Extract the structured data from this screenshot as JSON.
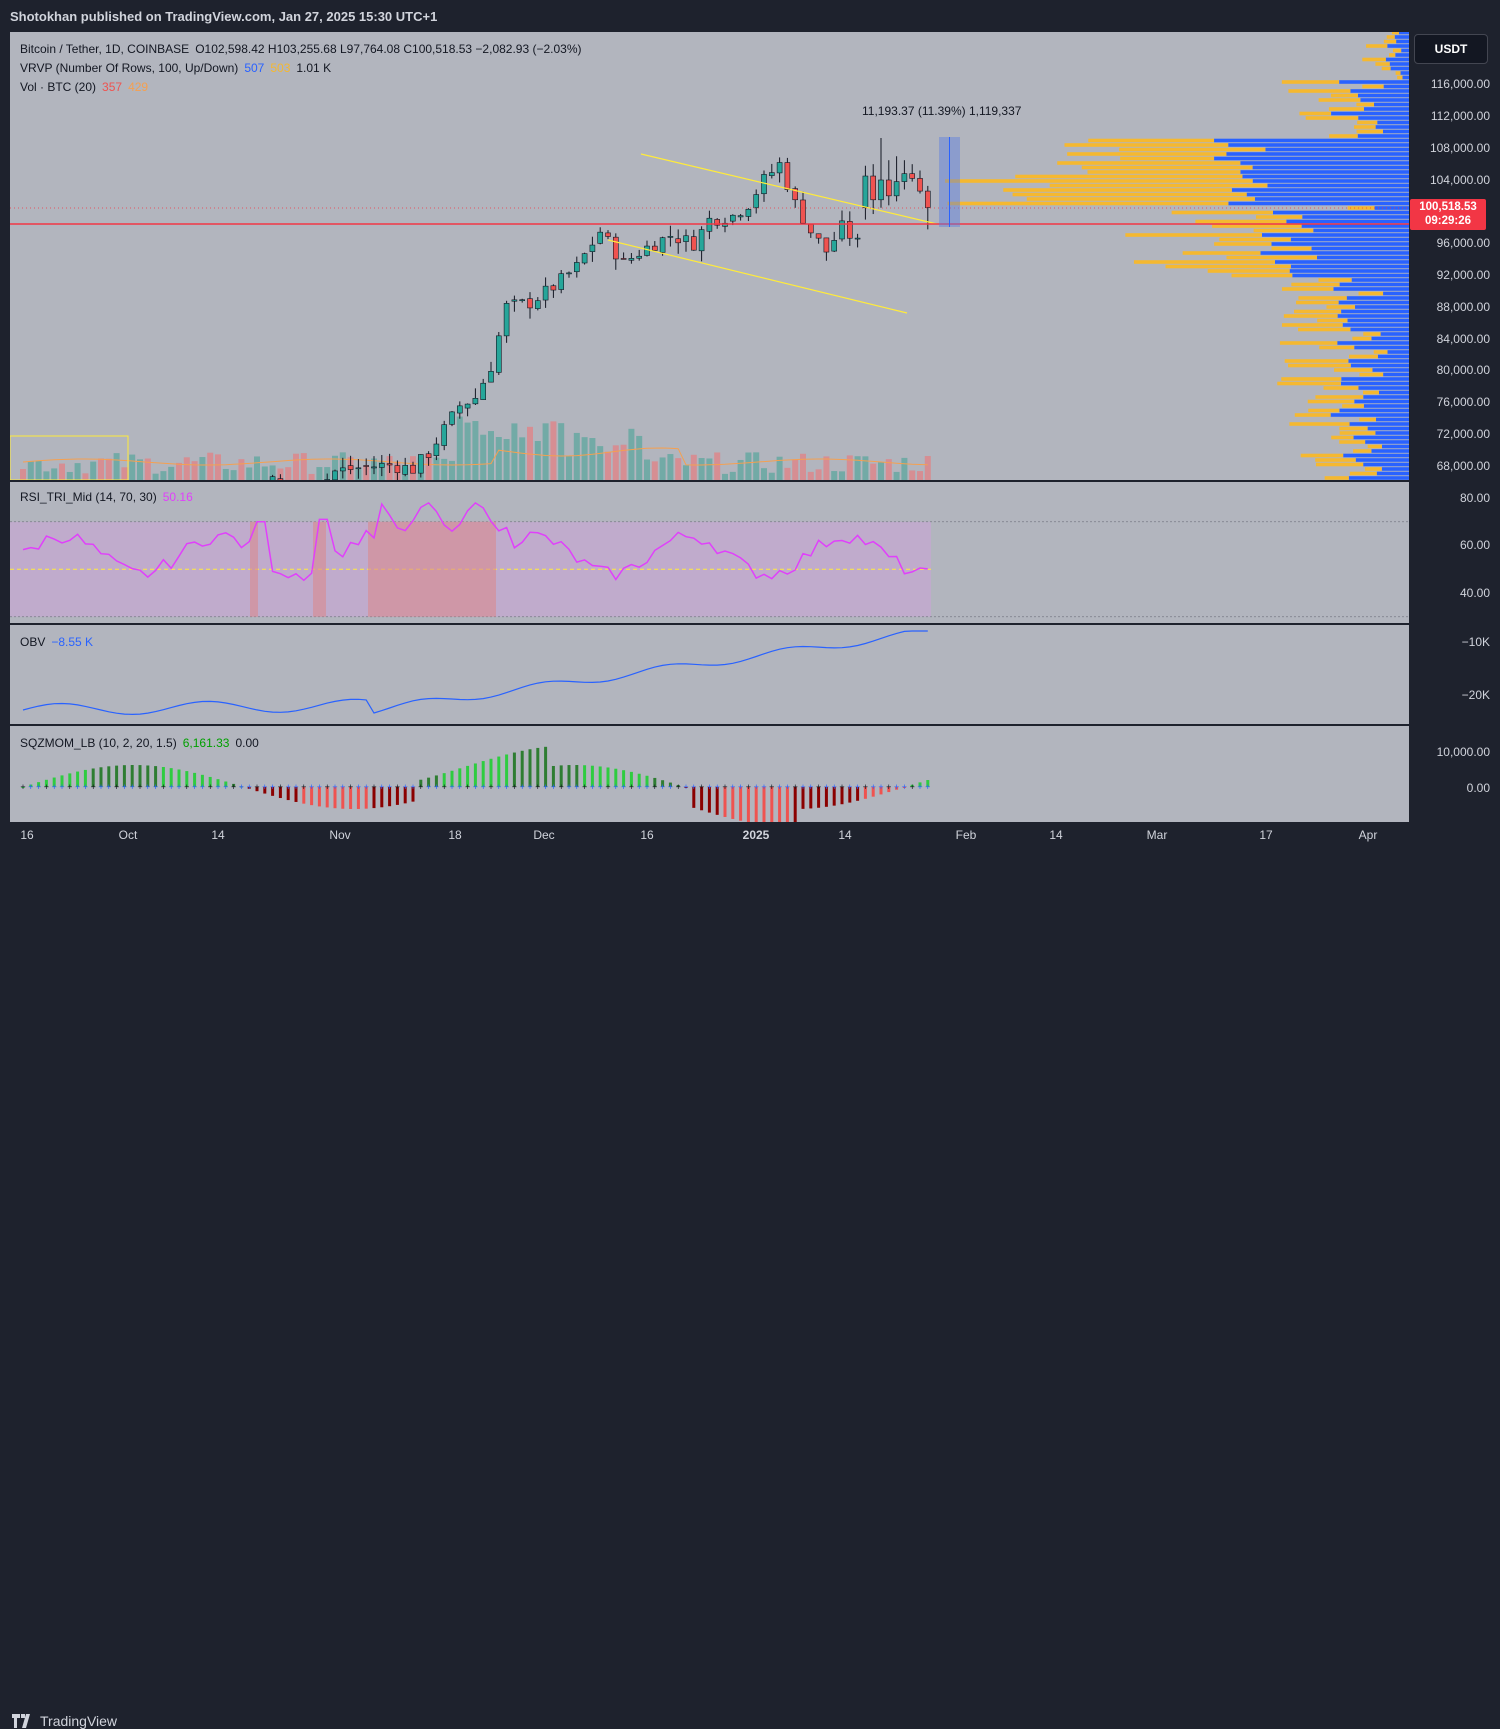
{
  "header": {
    "publisher_text": "Shotokhan published on TradingView.com, Jan 27, 2025 15:30 UTC+1"
  },
  "main_legend": {
    "symbol": "Bitcoin / Tether, 1D, COINBASE",
    "ohlc": "O102,598.42  H103,255.68  L97,764.08  C100,518.53  −2,082.93 (−2.03%)",
    "vrvp_name": "VRVP (Number Of Rows, 100, Up/Down)",
    "vrvp_up": "507",
    "vrvp_down": "503",
    "vrvp_total": "1.01 K",
    "vol_name": "Vol · BTC (20)",
    "vol_v1": "357",
    "vol_v2": "429"
  },
  "currency_button": "USDT",
  "price_tag": {
    "price": "100,518.53",
    "countdown": "09:29:26"
  },
  "measure_label": "11,193.37 (11.39%) 1,119,337",
  "price_axis": [
    "116,000.00",
    "112,000.00",
    "108,000.00",
    "104,000.00",
    "96,000.00",
    "92,000.00",
    "88,000.00",
    "84,000.00",
    "80,000.00",
    "76,000.00",
    "72,000.00",
    "68,000.00"
  ],
  "rsi": {
    "legend_name": "RSI_TRI_Mid (14, 70, 30)",
    "value": "50.16",
    "axis": [
      "80.00",
      "60.00",
      "40.00"
    ]
  },
  "obv": {
    "legend_name": "OBV",
    "value": "−8.55 K",
    "axis": [
      "−10K",
      "−20K"
    ]
  },
  "sqz": {
    "legend_name": "SQZMOM_LB (10, 2, 20, 1.5)",
    "value": "6,161.33",
    "value2": "0.00",
    "axis": [
      "10,000.00",
      "0.00"
    ]
  },
  "time_axis": [
    "16",
    "Oct",
    "14",
    "Nov",
    "18",
    "Dec",
    "16",
    "2025",
    "14",
    "Feb",
    "14",
    "Mar",
    "17",
    "Apr"
  ],
  "brand": "TradingView",
  "colors": {
    "up": "#26a69a",
    "down": "#ef5350",
    "rsi_line": "#e040fb",
    "obv_line": "#2962ff",
    "price_line": "#f23645",
    "trend_line": "#ffeb3b",
    "vp_up": "#2962ff",
    "vp_down": "#f5b830"
  },
  "chart_data": [
    {
      "type": "candlestick",
      "title": "Bitcoin / Tether, 1D, COINBASE",
      "ylim": [
        66000,
        118000
      ],
      "current_price": 100518.53,
      "series": [
        {
          "name": "BTCUSDT",
          "values": []
        }
      ]
    }
  ]
}
